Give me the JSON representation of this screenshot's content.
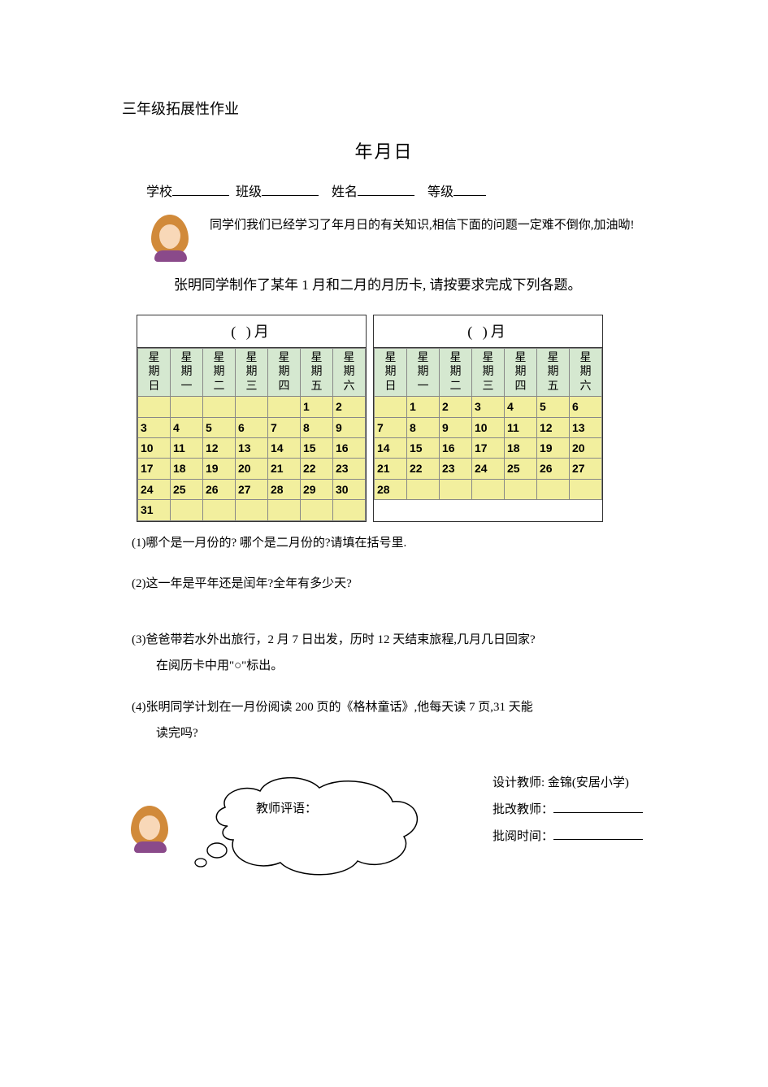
{
  "header": "三年级拓展性作业",
  "title": "年月日",
  "info": {
    "school_label": "学校",
    "class_label": "班级",
    "name_label": "姓名",
    "grade_label": "等级"
  },
  "intro": "同学们我们已经学习了年月日的有关知识,相信下面的问题一定难不倒你,加油呦!",
  "problem": "张明同学制作了某年 1 月和二月的月历卡, 请按要求完成下列各题。",
  "calendar": {
    "month_blank": "(    )月",
    "weekdays": [
      "星期日",
      "星期一",
      "星期二",
      "星期三",
      "星期四",
      "星期五",
      "星期六"
    ],
    "cal1_rows": [
      [
        "",
        "",
        "",
        "",
        "",
        "1",
        "2"
      ],
      [
        "3",
        "4",
        "5",
        "6",
        "7",
        "8",
        "9"
      ],
      [
        "10",
        "11",
        "12",
        "13",
        "14",
        "15",
        "16"
      ],
      [
        "17",
        "18",
        "19",
        "20",
        "21",
        "22",
        "23"
      ],
      [
        "24",
        "25",
        "26",
        "27",
        "28",
        "29",
        "30"
      ],
      [
        "31",
        "",
        "",
        "",
        "",
        "",
        ""
      ]
    ],
    "cal2_rows": [
      [
        "",
        "1",
        "2",
        "3",
        "4",
        "5",
        "6"
      ],
      [
        "7",
        "8",
        "9",
        "10",
        "11",
        "12",
        "13"
      ],
      [
        "14",
        "15",
        "16",
        "17",
        "18",
        "19",
        "20"
      ],
      [
        "21",
        "22",
        "23",
        "24",
        "25",
        "26",
        "27"
      ],
      [
        "28",
        "",
        "",
        "",
        "",
        "",
        ""
      ]
    ],
    "header_bg": "#d5e8d0",
    "cell_bg": "#f2ef9e",
    "border_color": "#888888"
  },
  "questions": {
    "q1": "(1)哪个是一月份的? 哪个是二月份的?请填在括号里.",
    "q2": "(2)这一年是平年还是闰年?全年有多少天?",
    "q3": "(3)爸爸带若水外出旅行，2 月 7 日出发，历时 12 天结束旅程,几月几日回家?",
    "q3b": "在阅历卡中用\"○\"标出。",
    "q4": "(4)张明同学计划在一月份阅读 200 页的《格林童话》,他每天读 7 页,31 天能",
    "q4b": "读完吗?"
  },
  "footer": {
    "bubble_label": "教师评语：",
    "designer": "设计教师: 金锦(安居小学)",
    "reviewer_label": "批改教师：",
    "time_label": "批阅时间："
  }
}
